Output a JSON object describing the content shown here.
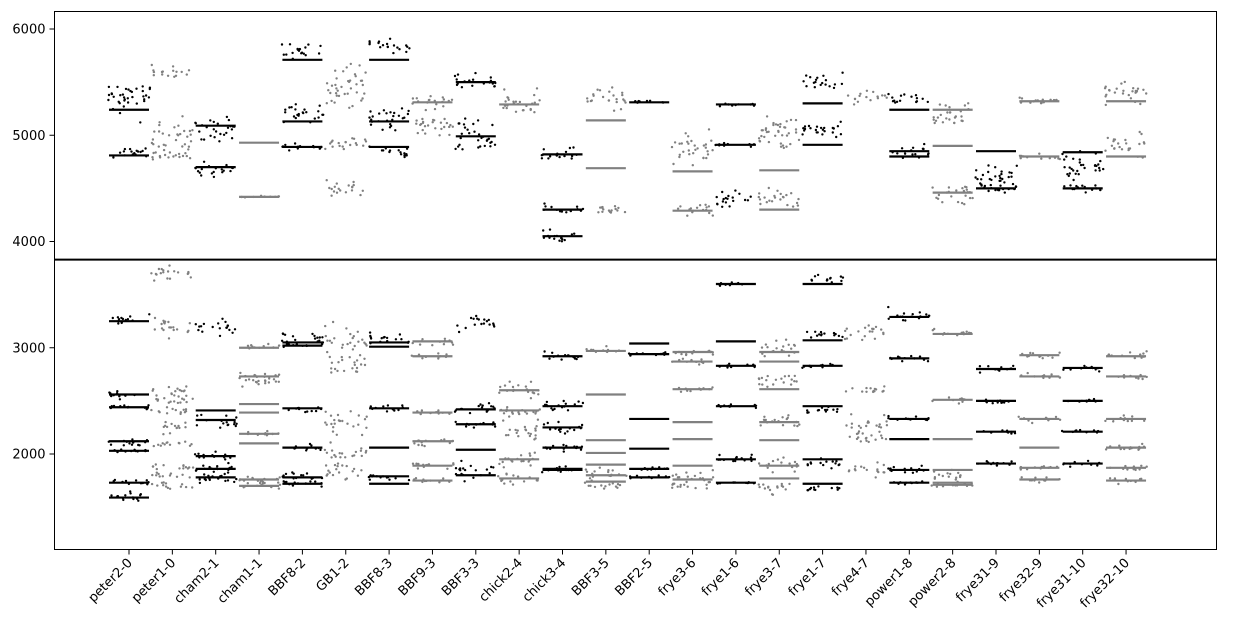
{
  "chart_data": {
    "type": "scatter",
    "title": "",
    "xlabel": "",
    "ylabel": "",
    "ylim": [
      1100,
      6200
    ],
    "y_ticks": [
      2000,
      3000,
      4000,
      5000,
      6000
    ],
    "break_at": 3830,
    "grid": false,
    "colors": {
      "dark": "#000000",
      "light": "#808080"
    },
    "categories": [
      "peter2-0",
      "peter1-0",
      "cham2-1",
      "cham1-1",
      "BBF8-2",
      "GB1-2",
      "BBF8-3",
      "BBF9-3",
      "BBF3-3",
      "chick2-4",
      "chick3-4",
      "BBF3-5",
      "BBF2-5",
      "frye3-6",
      "frye1-6",
      "frye3-7",
      "frye1-7",
      "frye4-7",
      "power1-8",
      "power2-8",
      "frye31-9",
      "frye32-9",
      "frye31-10",
      "frye32-10"
    ],
    "series": [
      {
        "category": "peter2-0",
        "color": "dark",
        "levels": [
          5240,
          4810,
          3250,
          2560,
          2440,
          2120,
          2030,
          1730,
          1590
        ],
        "clusters": [
          [
            5350,
            180
          ],
          [
            4830,
            60
          ],
          [
            3260,
            50
          ],
          [
            2560,
            40
          ],
          [
            2440,
            30
          ],
          [
            2110,
            40
          ],
          [
            2030,
            30
          ],
          [
            1730,
            30
          ],
          [
            1590,
            50
          ]
        ]
      },
      {
        "category": "peter1-0",
        "color": "light",
        "levels": [],
        "clusters": [
          [
            5600,
            60
          ],
          [
            5000,
            150
          ],
          [
            4800,
            60
          ],
          [
            3700,
            80
          ],
          [
            3200,
            80
          ],
          [
            2600,
            60
          ],
          [
            2500,
            40
          ],
          [
            2400,
            40
          ],
          [
            2250,
            50
          ],
          [
            2100,
            40
          ],
          [
            1880,
            40
          ],
          [
            1800,
            30
          ],
          [
            1700,
            40
          ]
        ]
      },
      {
        "category": "cham2-1",
        "color": "dark",
        "levels": [
          5090,
          4700,
          2410,
          2320,
          1980,
          1860,
          1780
        ],
        "clusters": [
          [
            5050,
            120
          ],
          [
            4680,
            80
          ],
          [
            3200,
            80
          ],
          [
            2300,
            60
          ],
          [
            1980,
            40
          ],
          [
            1860,
            60
          ],
          [
            1760,
            60
          ]
        ]
      },
      {
        "category": "cham1-1",
        "color": "light",
        "levels": [
          4930,
          4420,
          3000,
          2730,
          2470,
          2390,
          2190,
          2100,
          1760,
          1700
        ],
        "clusters": [
          [
            4420,
            20
          ],
          [
            3000,
            30
          ],
          [
            2730,
            40
          ],
          [
            2670,
            50
          ],
          [
            2190,
            30
          ],
          [
            1760,
            40
          ],
          [
            1700,
            40
          ]
        ]
      },
      {
        "category": "BBF8-2",
        "color": "dark",
        "levels": [
          5710,
          5130,
          4890,
          3050,
          3020,
          2430,
          2060,
          1780,
          1720
        ],
        "clusters": [
          [
            5800,
            80
          ],
          [
            5200,
            100
          ],
          [
            4890,
            40
          ],
          [
            3100,
            60
          ],
          [
            3030,
            30
          ],
          [
            2420,
            30
          ],
          [
            2060,
            30
          ],
          [
            1790,
            40
          ],
          [
            1720,
            40
          ]
        ]
      },
      {
        "category": "GB1-2",
        "color": "light",
        "levels": [],
        "clusters": [
          [
            5450,
            200
          ],
          [
            4920,
            80
          ],
          [
            4500,
            80
          ],
          [
            3100,
            100
          ],
          [
            2850,
            100
          ],
          [
            2300,
            100
          ],
          [
            2000,
            80
          ],
          [
            1850,
            80
          ]
        ]
      },
      {
        "category": "BBF8-3",
        "color": "dark",
        "levels": [
          5710,
          5130,
          4890,
          3050,
          3010,
          2430,
          2060,
          1790,
          1720
        ],
        "clusters": [
          [
            5850,
            80
          ],
          [
            5150,
            120
          ],
          [
            4850,
            60
          ],
          [
            3080,
            60
          ],
          [
            2430,
            30
          ],
          [
            1780,
            40
          ]
        ]
      },
      {
        "category": "BBF9-3",
        "color": "light",
        "levels": [
          5310,
          3060,
          2920,
          2390,
          2120,
          1890,
          1750
        ],
        "clusters": [
          [
            5300,
            80
          ],
          [
            5100,
            120
          ],
          [
            3060,
            40
          ],
          [
            2920,
            30
          ],
          [
            2390,
            30
          ],
          [
            2110,
            40
          ],
          [
            1890,
            40
          ],
          [
            1750,
            30
          ]
        ]
      },
      {
        "category": "BBF3-3",
        "color": "dark",
        "levels": [
          5500,
          4990,
          2420,
          2280,
          2040,
          1800
        ],
        "clusters": [
          [
            5520,
            80
          ],
          [
            5000,
            150
          ],
          [
            3230,
            70
          ],
          [
            2420,
            60
          ],
          [
            2280,
            40
          ],
          [
            1850,
            80
          ]
        ]
      },
      {
        "category": "chick2-4",
        "color": "light",
        "levels": [
          5290,
          2600,
          2410,
          1950,
          1770
        ],
        "clusters": [
          [
            5300,
            120
          ],
          [
            2600,
            80
          ],
          [
            2400,
            80
          ],
          [
            2200,
            80
          ],
          [
            1950,
            70
          ],
          [
            1780,
            60
          ]
        ]
      },
      {
        "category": "chick3-4",
        "color": "dark",
        "levels": [
          4820,
          4300,
          4050,
          2920,
          2450,
          2250,
          2060,
          1860,
          1850
        ],
        "clusters": [
          [
            4820,
            60
          ],
          [
            4300,
            40
          ],
          [
            4060,
            60
          ],
          [
            2930,
            50
          ],
          [
            2450,
            60
          ],
          [
            2250,
            60
          ],
          [
            2060,
            50
          ],
          [
            1860,
            40
          ]
        ]
      },
      {
        "category": "BBF3-5",
        "color": "light",
        "levels": [
          5140,
          4690,
          2970,
          2560,
          2130,
          2010,
          1900,
          1800,
          1740
        ],
        "clusters": [
          [
            5350,
            100
          ],
          [
            4300,
            60
          ],
          [
            2970,
            30
          ],
          [
            1800,
            60
          ],
          [
            1700,
            40
          ]
        ]
      },
      {
        "category": "BBF2-5",
        "color": "dark",
        "levels": [
          5310,
          3040,
          2940,
          2330,
          2050,
          1860,
          1780
        ],
        "clusters": [
          [
            5310,
            20
          ],
          [
            2940,
            20
          ],
          [
            1860,
            20
          ],
          [
            1780,
            20
          ]
        ]
      },
      {
        "category": "frye3-6",
        "color": "light",
        "levels": [
          4660,
          4290,
          2960,
          2870,
          2610,
          2300,
          2140,
          1890,
          1760
        ],
        "clusters": [
          [
            4900,
            150
          ],
          [
            4300,
            60
          ],
          [
            2950,
            40
          ],
          [
            2870,
            30
          ],
          [
            2610,
            30
          ],
          [
            1780,
            60
          ],
          [
            1700,
            40
          ]
        ]
      },
      {
        "category": "frye1-6",
        "color": "dark",
        "levels": [
          5290,
          4910,
          3600,
          3060,
          2830,
          2450,
          1950,
          1730
        ],
        "clusters": [
          [
            5290,
            20
          ],
          [
            4910,
            20
          ],
          [
            4400,
            80
          ],
          [
            3600,
            20
          ],
          [
            2830,
            20
          ],
          [
            2450,
            20
          ],
          [
            1960,
            40
          ],
          [
            1730,
            20
          ]
        ]
      },
      {
        "category": "frye3-7",
        "color": "light",
        "levels": [
          4670,
          4300,
          2960,
          2870,
          2610,
          2300,
          2130,
          1890,
          1770
        ],
        "clusters": [
          [
            5000,
            200
          ],
          [
            4400,
            100
          ],
          [
            3000,
            80
          ],
          [
            2700,
            80
          ],
          [
            2300,
            80
          ],
          [
            1900,
            60
          ],
          [
            1680,
            60
          ]
        ]
      },
      {
        "category": "frye1-7",
        "color": "dark",
        "levels": [
          5300,
          4910,
          3600,
          3070,
          2830,
          2450,
          1950,
          1720
        ],
        "clusters": [
          [
            5500,
            80
          ],
          [
            5050,
            100
          ],
          [
            3650,
            40
          ],
          [
            3120,
            50
          ],
          [
            2830,
            30
          ],
          [
            2420,
            40
          ],
          [
            1920,
            50
          ],
          [
            1680,
            40
          ]
        ]
      },
      {
        "category": "frye4-7",
        "color": "light",
        "levels": [],
        "clusters": [
          [
            5360,
            60
          ],
          [
            3150,
            80
          ],
          [
            2600,
            50
          ],
          [
            2280,
            80
          ],
          [
            2150,
            60
          ],
          [
            1850,
            60
          ]
        ]
      },
      {
        "category": "power1-8",
        "color": "dark",
        "levels": [
          5240,
          4850,
          4800,
          3290,
          2900,
          2330,
          2140,
          1850,
          1730
        ],
        "clusters": [
          [
            5360,
            60
          ],
          [
            4840,
            60
          ],
          [
            3300,
            60
          ],
          [
            2900,
            30
          ],
          [
            2330,
            30
          ],
          [
            1850,
            40
          ],
          [
            1730,
            30
          ]
        ]
      },
      {
        "category": "power2-8",
        "color": "light",
        "levels": [
          5240,
          4900,
          4460,
          3130,
          2510,
          2140,
          1850,
          1730,
          1710
        ],
        "clusters": [
          [
            5200,
            120
          ],
          [
            4450,
            100
          ],
          [
            3150,
            40
          ],
          [
            2510,
            30
          ],
          [
            1800,
            60
          ],
          [
            1710,
            30
          ]
        ]
      },
      {
        "category": "frye31-9",
        "color": "dark",
        "levels": [
          4850,
          4500,
          2800,
          2500,
          2210,
          1910
        ],
        "clusters": [
          [
            4600,
            150
          ],
          [
            4500,
            40
          ],
          [
            2800,
            30
          ],
          [
            2500,
            30
          ],
          [
            2210,
            20
          ],
          [
            1910,
            30
          ]
        ]
      },
      {
        "category": "frye32-9",
        "color": "light",
        "levels": [
          5320,
          4800,
          2930,
          2730,
          2330,
          2060,
          1870,
          1760
        ],
        "clusters": [
          [
            5320,
            60
          ],
          [
            4800,
            30
          ],
          [
            2930,
            30
          ],
          [
            2730,
            30
          ],
          [
            2330,
            30
          ],
          [
            1870,
            30
          ],
          [
            1760,
            30
          ]
        ]
      },
      {
        "category": "frye31-10",
        "color": "dark",
        "levels": [
          4840,
          4500,
          2810,
          2500,
          2210,
          1910
        ],
        "clusters": [
          [
            4700,
            150
          ],
          [
            4500,
            40
          ],
          [
            2810,
            30
          ],
          [
            2500,
            20
          ],
          [
            2210,
            20
          ],
          [
            1910,
            30
          ]
        ]
      },
      {
        "category": "frye32-10",
        "color": "light",
        "levels": [
          5320,
          4800,
          2920,
          2730,
          2330,
          2060,
          1870,
          1750
        ],
        "clusters": [
          [
            5400,
            120
          ],
          [
            4900,
            100
          ],
          [
            2930,
            40
          ],
          [
            2730,
            30
          ],
          [
            2330,
            30
          ],
          [
            2060,
            40
          ],
          [
            1870,
            30
          ],
          [
            1750,
            30
          ]
        ]
      }
    ]
  }
}
